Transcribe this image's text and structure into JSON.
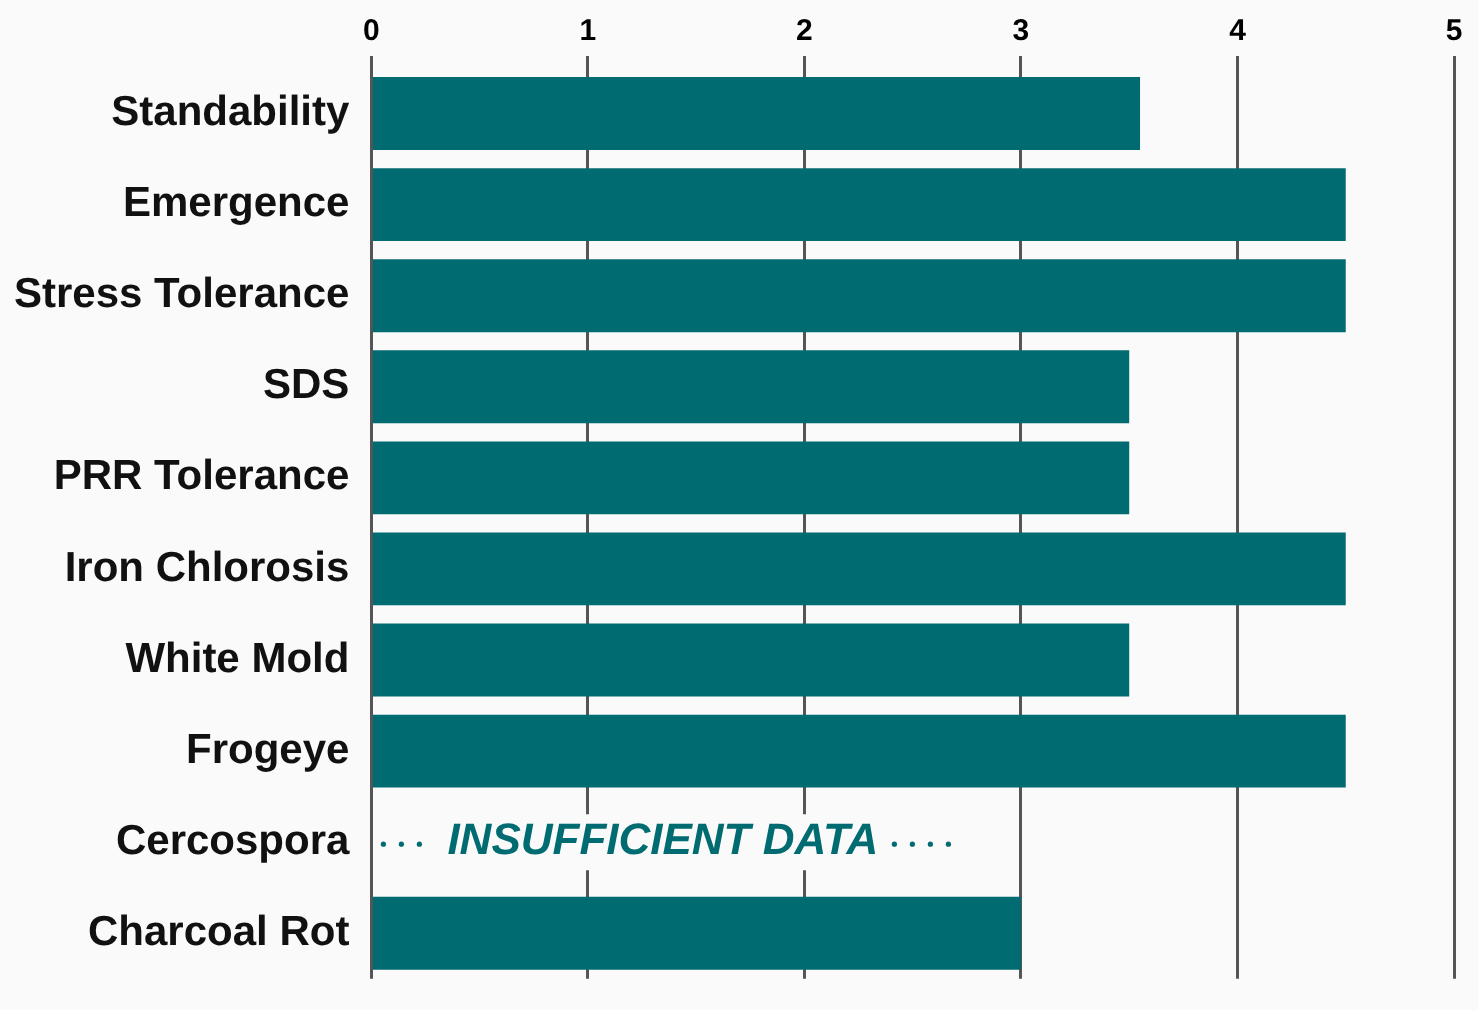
{
  "chart_data": {
    "type": "bar",
    "orientation": "horizontal",
    "categories": [
      "Standability",
      "Emergence",
      "Stress Tolerance",
      "SDS",
      "PRR Tolerance",
      "Iron Chlorosis",
      "White Mold",
      "Frogeye",
      "Cercospora",
      "Charcoal Rot"
    ],
    "values": [
      3.55,
      4.5,
      4.5,
      3.5,
      3.5,
      4.5,
      3.5,
      4.5,
      null,
      3.0
    ],
    "color": "#006b70",
    "xlim": [
      0,
      5
    ],
    "xticks": [
      0,
      1,
      2,
      3,
      4,
      5
    ],
    "grid": "x",
    "annotations": [
      "INSUFFICIENT DATA"
    ]
  }
}
